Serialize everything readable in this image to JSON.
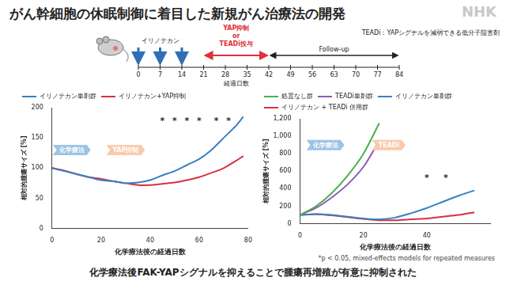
{
  "title": "がん幹細胞の休眠制御に着目した新規がん治療法の開発",
  "watermark": "NHK",
  "timeline": {
    "drug_label": "イリノテカン",
    "dosing_days": [
      0,
      7,
      14
    ],
    "days": [
      0,
      7,
      14,
      21,
      28,
      35,
      42,
      49,
      56,
      63,
      70,
      77,
      84
    ],
    "axis_label": "経過日数",
    "treatment": {
      "label_lines": [
        "YAP抑制",
        "or",
        "TEADi投与"
      ],
      "start": 21,
      "end": 42,
      "color": "#e0303a"
    },
    "follow_up": {
      "label": "Follow-up",
      "start": 42,
      "end": 84
    },
    "note": "TEADi：YAPシグナルを減弱できる低分子阻害剤"
  },
  "chart_data": [
    {
      "type": "line",
      "x_label": "化学療法後の経過日数",
      "y_label": "相対的腫瘍サイズ [%]",
      "x": [
        0,
        5,
        10,
        15,
        20,
        25,
        30,
        35,
        40,
        45,
        50,
        55,
        60,
        65,
        70,
        75,
        78
      ],
      "series": [
        {
          "name": "イリノテカン単剤群",
          "color": "#3a7fc4",
          "values": [
            100,
            95,
            90,
            85,
            80,
            78,
            75,
            76,
            80,
            88,
            95,
            105,
            115,
            130,
            150,
            170,
            185
          ]
        },
        {
          "name": "イリノテカン+YAP抑制",
          "color": "#d9303e",
          "values": [
            100,
            96,
            90,
            85,
            82,
            78,
            75,
            72,
            72,
            74,
            76,
            80,
            85,
            92,
            100,
            112,
            120
          ]
        }
      ],
      "xlim": [
        0,
        80
      ],
      "xticks": [
        0,
        20,
        40,
        60,
        80
      ],
      "ylim": [
        0,
        200
      ],
      "yticks": [
        0,
        50,
        100,
        150,
        200
      ],
      "grid": false,
      "legend": "upper left",
      "annotations": [
        {
          "text": "化学療法",
          "x": 8,
          "y": 130,
          "color": "#9dc3e6"
        },
        {
          "text": "YAP抑制",
          "x": 30,
          "y": 130,
          "color": "#f8cbad"
        }
      ],
      "asterisks": [
        {
          "text": "*",
          "x": 45,
          "y": 178
        },
        {
          "text": "*",
          "x": 50,
          "y": 178
        },
        {
          "text": "*",
          "x": 55,
          "y": 178
        },
        {
          "text": "*",
          "x": 60,
          "y": 178
        },
        {
          "text": "*",
          "x": 67,
          "y": 178
        },
        {
          "text": "*",
          "x": 72,
          "y": 178
        }
      ]
    },
    {
      "type": "line",
      "x_label": "化学療法後の経過日数",
      "y_label": "相対的腫瘍サイズ [%]",
      "x": [
        0,
        5,
        10,
        15,
        20,
        25,
        30,
        35,
        40,
        45,
        50,
        55
      ],
      "series": [
        {
          "name": "処置なし群",
          "color": "#4caf50",
          "values": [
            100,
            200,
            350,
            550,
            800,
            1150,
            null,
            null,
            null,
            null,
            null,
            null
          ]
        },
        {
          "name": "TEADi単剤群",
          "color": "#8e5bb5",
          "values": [
            100,
            180,
            300,
            450,
            650,
            950,
            null,
            null,
            null,
            null,
            null,
            null
          ]
        },
        {
          "name": "イリノテカン単剤群",
          "color": "#3a7fc4",
          "values": [
            100,
            110,
            100,
            80,
            60,
            50,
            70,
            120,
            180,
            250,
            320,
            380
          ]
        },
        {
          "name": "イリノテカン + TEADi 併用群",
          "color": "#d9303e",
          "values": [
            100,
            110,
            95,
            75,
            55,
            40,
            40,
            50,
            60,
            80,
            100,
            130
          ]
        }
      ],
      "xlim": [
        0,
        60
      ],
      "xticks": [
        0,
        20,
        40
      ],
      "ylim": [
        0,
        1200
      ],
      "yticks": [
        0,
        200,
        400,
        600,
        800,
        {
          "value": 1000,
          "label": "1,000"
        },
        {
          "value": 1200,
          "label": "1,200"
        }
      ],
      "grid": false,
      "legend": "upper left",
      "annotations": [
        {
          "text": "化学療法",
          "x": 8,
          "y": 900,
          "color": "#9dc3e6"
        },
        {
          "text": "TEADi",
          "x": 28,
          "y": 900,
          "color": "#f8cbad"
        }
      ],
      "asterisks": [
        {
          "text": "*",
          "x": 40,
          "y": 520
        },
        {
          "text": "*",
          "x": 46,
          "y": 520
        }
      ]
    }
  ],
  "footnote": "*p < 0.05, mixed-effects models for repeated measures",
  "caption": "化学療法後FAK-YAPシグナルを抑えることで腫瘍再増殖が有意に抑制された"
}
